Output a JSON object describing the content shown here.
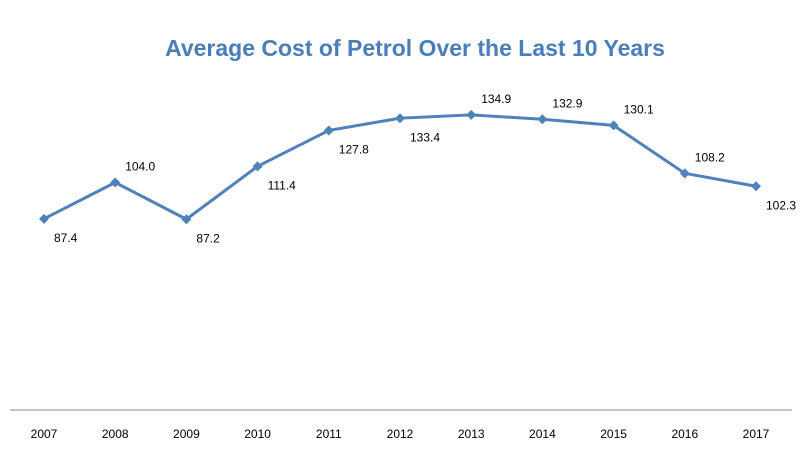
{
  "chart_data": {
    "type": "line",
    "title": "Average Cost of Petrol Over the Last 10 Years",
    "categories": [
      "2007",
      "2008",
      "2009",
      "2010",
      "2011",
      "2012",
      "2013",
      "2014",
      "2015",
      "2016",
      "2017"
    ],
    "values": [
      87.4,
      104.0,
      87.2,
      111.4,
      127.8,
      133.4,
      134.9,
      132.9,
      130.1,
      108.2,
      102.3
    ],
    "value_labels": [
      "87.4",
      "104.0",
      "87.2",
      "111.4",
      "127.8",
      "133.4",
      "134.9",
      "132.9",
      "130.1",
      "108.2",
      "102.3"
    ],
    "color": "#4f81bd",
    "ylim": [
      0,
      160
    ]
  }
}
